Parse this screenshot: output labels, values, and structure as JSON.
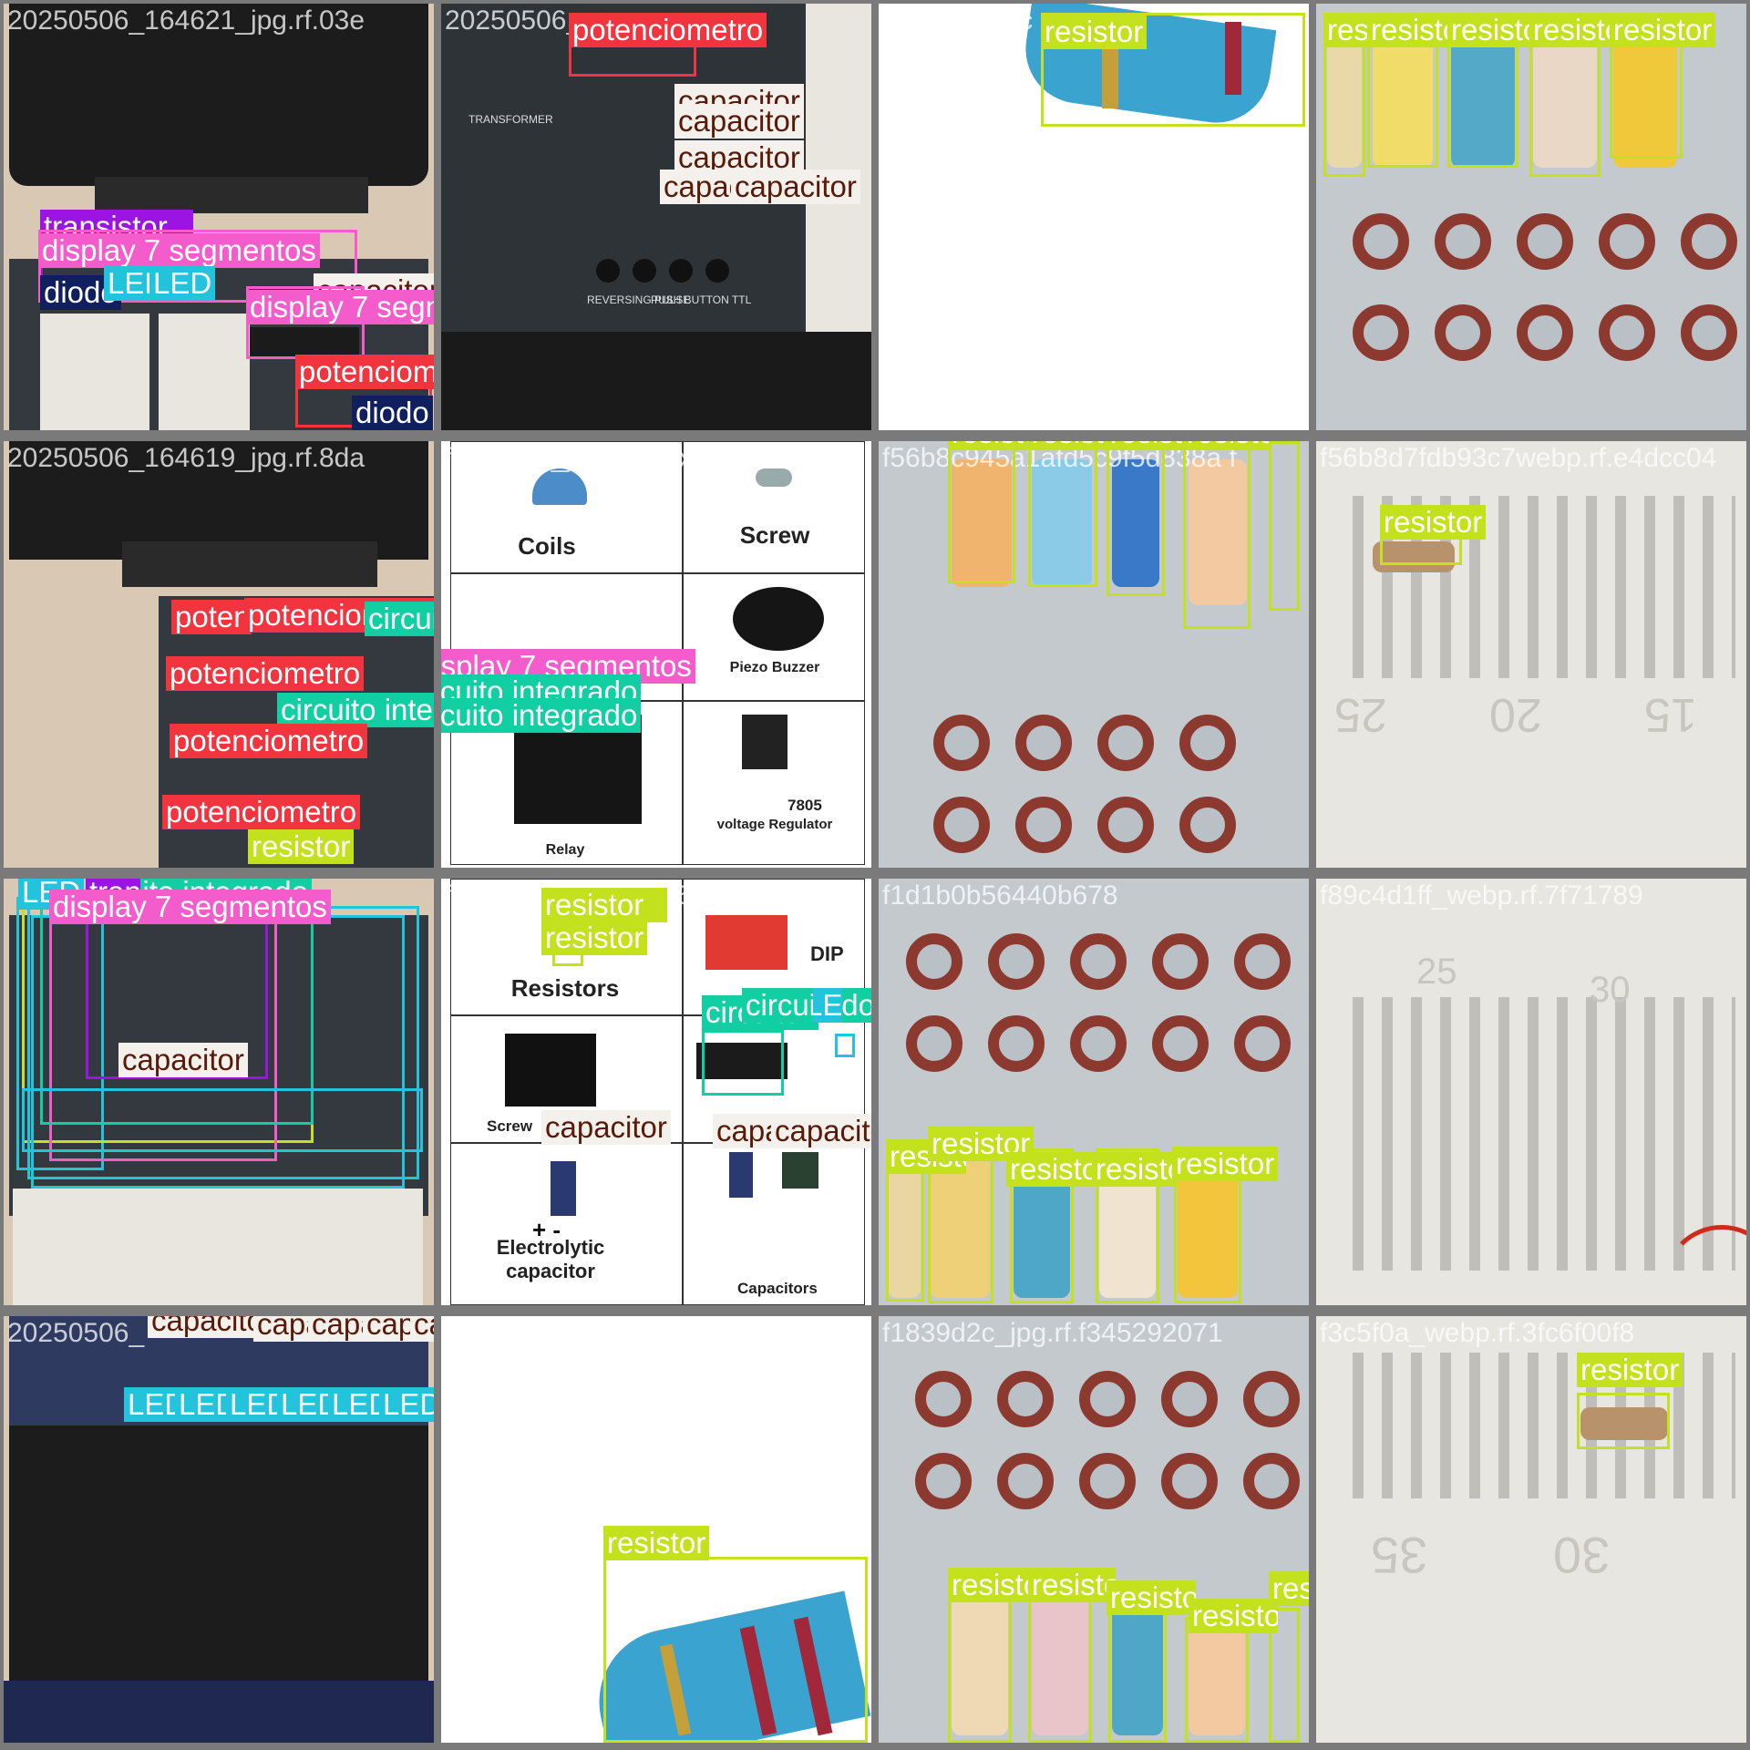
{
  "filenames": {
    "t00": "20250506_164621_jpg.rf.03e",
    "t01": "20250506_",
    "t02": "a025b3ae4c",
    "t10": "20250506_164619_jpg.rf.8da",
    "t11": "f789a7fd_jpg.rf.ce0x500_webp",
    "t12": "f56b8c945a1afd5c9f5d838a f",
    "t13": "f56b8d7fdb93c7webp.rf.e4dcc04",
    "t21": "f6c8d4b5a9d_400x500_webp",
    "t22": "f1d1b0b56440b678",
    "t23": "f89c4d1ff_webp.rf.7f71789",
    "t30": "20250506_",
    "t31": "f7_a4f22e0.1463293",
    "t32": "f1839d2c_jpg.rf.f345292071",
    "t33": "f3c5f0a_webp.rf.3fc6f00f8"
  },
  "labels": {
    "res": "resistor",
    "pot": "potenciometro",
    "cap": "capacitor",
    "led": "LED",
    "dis": "display 7 segmentos",
    "ci": "circuito integrado",
    "dio": "diodo",
    "tra": "transistor"
  },
  "panel_text": {
    "transformer": "TRANSFORMER",
    "reversing": "REVERSING PULSE",
    "push": "PUSH BUTTON TTL",
    "coils": "Coils",
    "screw": "Screw",
    "piezo": "Piezo Buzzer",
    "relay": "Relay",
    "vr_num": "7805",
    "vr": "voltage Regulator",
    "resistors": "Resistors",
    "dip": "DIP",
    "screw_term": "Screw",
    "electro": "Electrolytic capacitor",
    "capacitors": "Capacitors",
    "plus": "+ -",
    "bb25": "25",
    "bb20": "20",
    "bb15": "15",
    "bb30": "30",
    "bb35": "35",
    "bb30b": "30",
    "bb25b": "25"
  },
  "colors": {
    "resistor": "#c3e11d",
    "potenciometro": "#f2343f",
    "capacitor": "#ffffff",
    "LED": "#24c3dc",
    "display": "#f45ccb",
    "circuito": "#12cfa3",
    "diodo": "#10205e",
    "transistor": "#9b14e3"
  }
}
